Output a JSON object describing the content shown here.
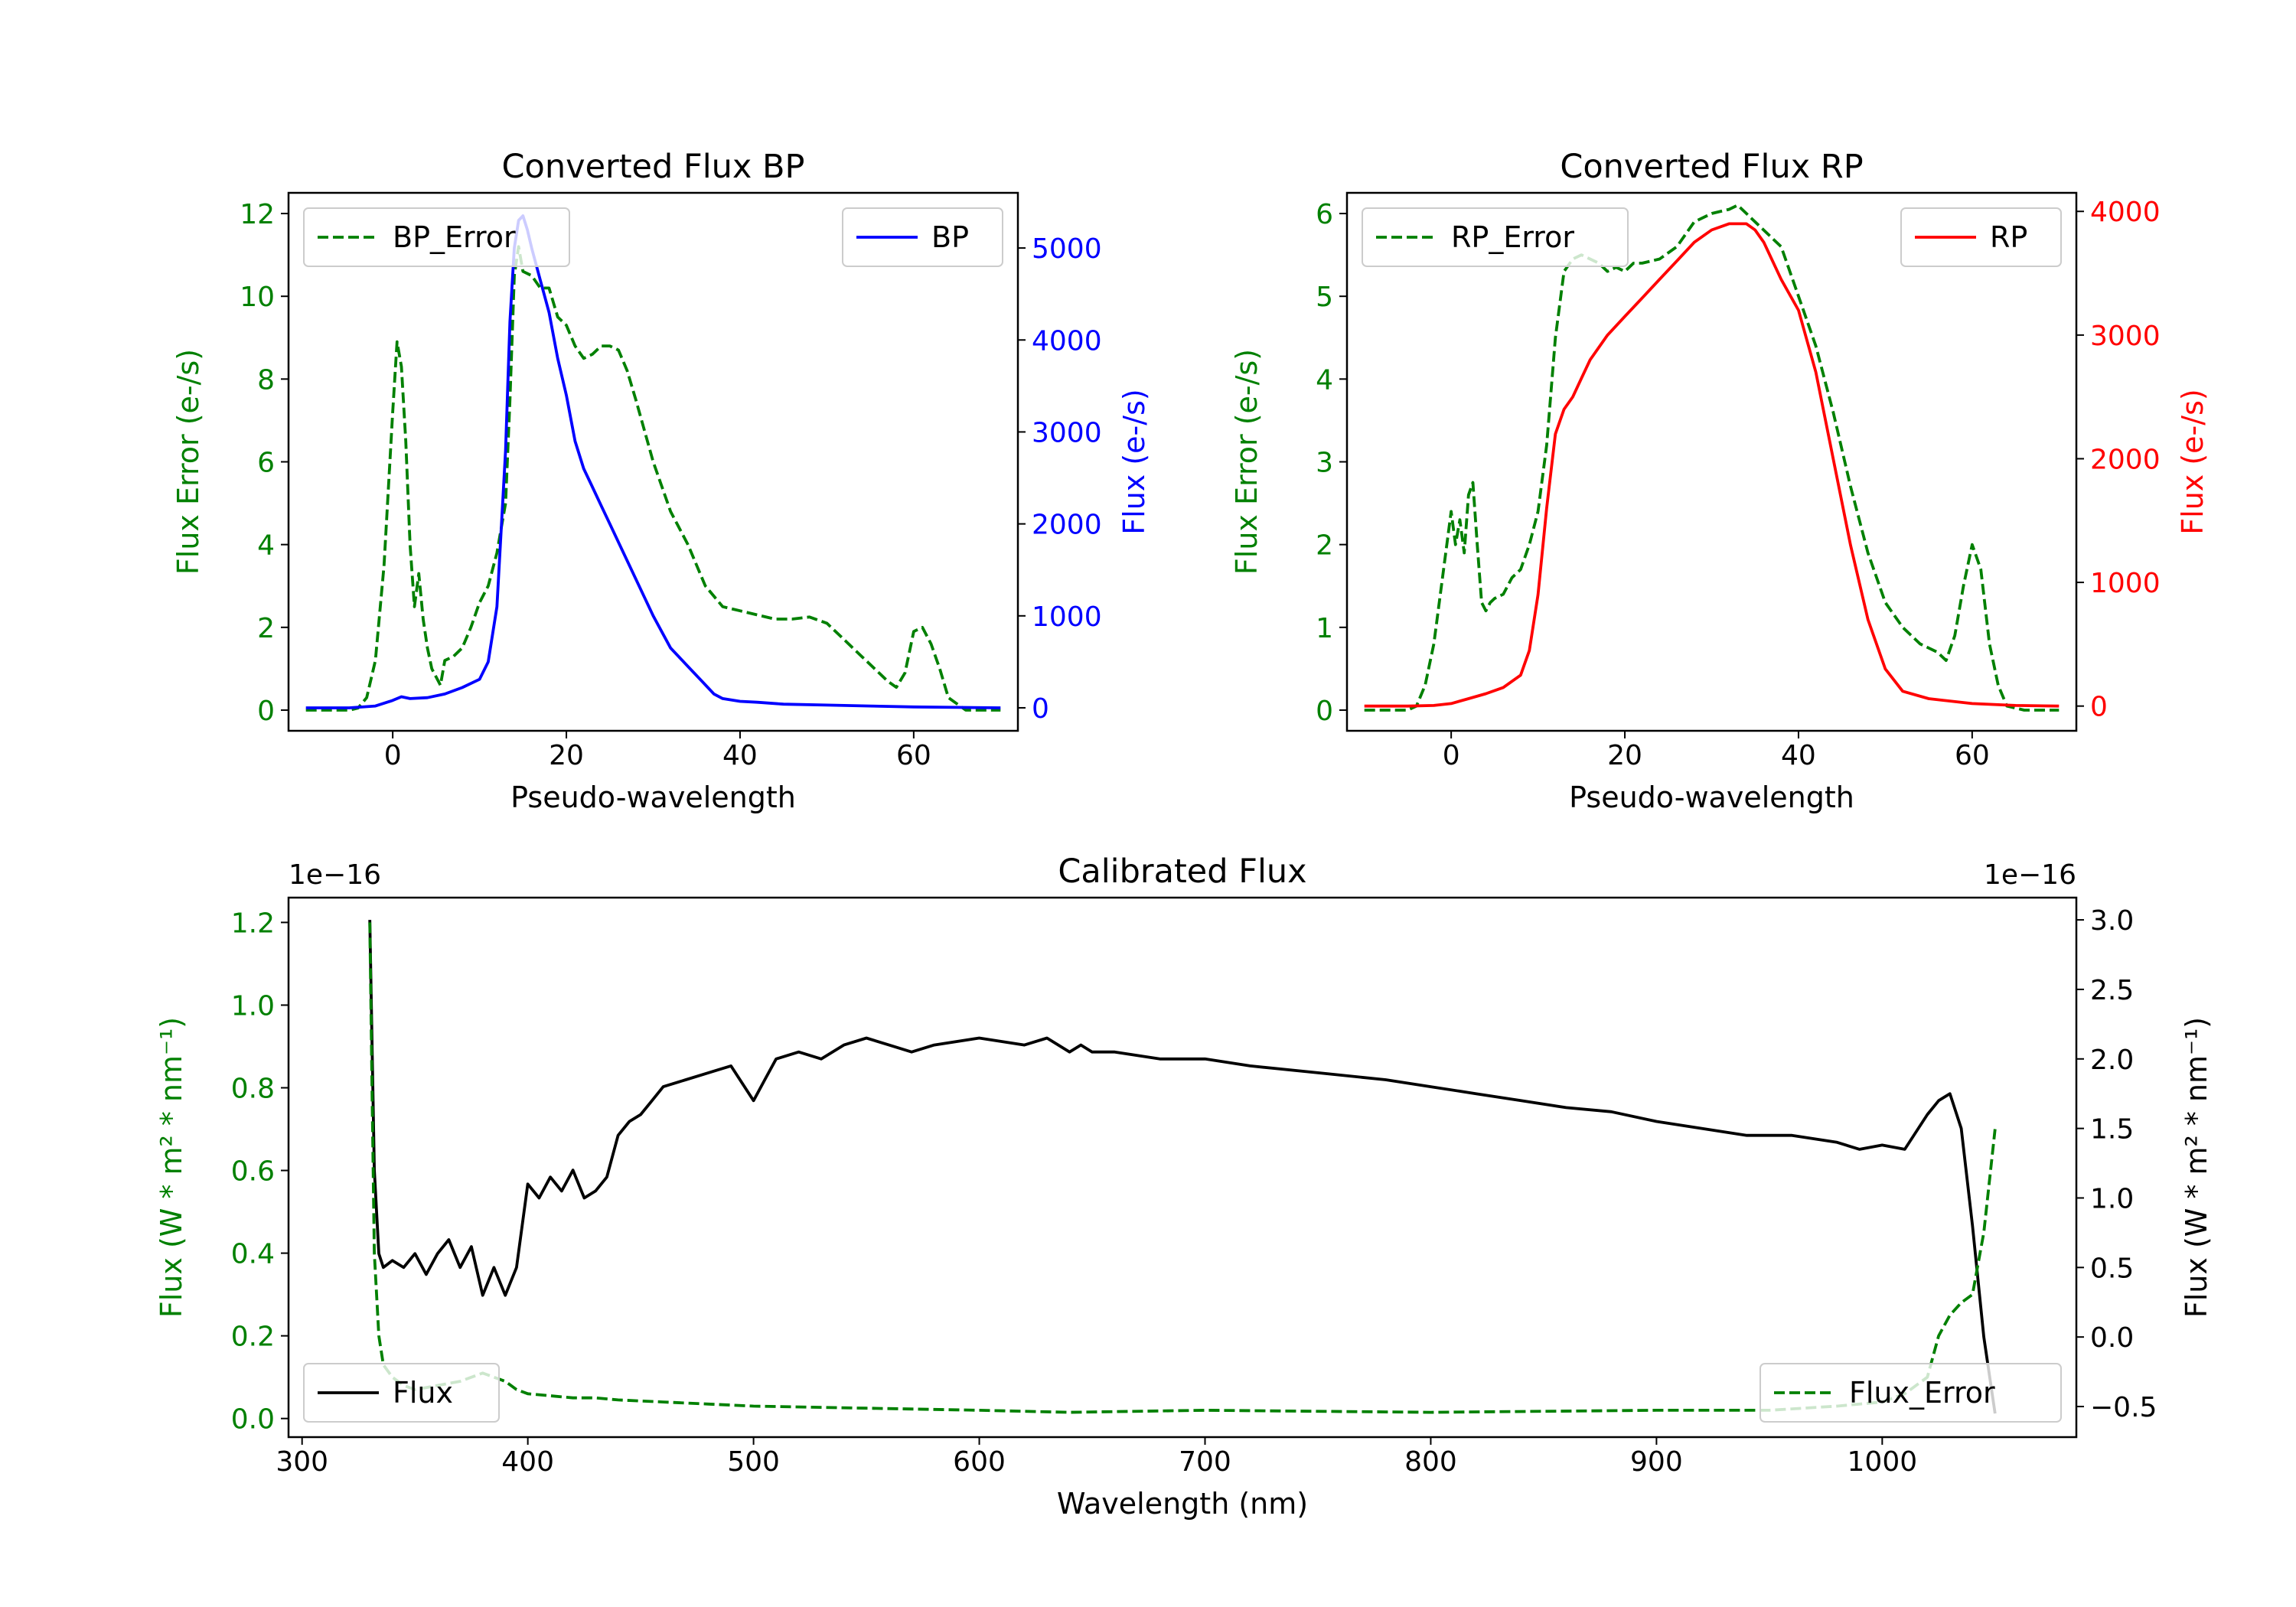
{
  "chart_data": [
    {
      "type": "line",
      "title": "Converted Flux BP",
      "xlabel": "Pseudo-wavelength",
      "ylabel_left": "Flux Error (e-/s)",
      "ylabel_right": "Flux (e-/s)",
      "xlim": [
        -12,
        72
      ],
      "ylim_left": [
        -0.5,
        12.5
      ],
      "ylim_right": [
        -250,
        5600
      ],
      "xticks": [
        0,
        20,
        40,
        60
      ],
      "yticks_left": [
        0,
        2,
        4,
        6,
        8,
        10,
        12
      ],
      "yticks_right": [
        0,
        1000,
        2000,
        3000,
        4000,
        5000
      ],
      "colors": {
        "left_axis": "#008000",
        "right_axis": "#0000ff"
      },
      "legend_left": {
        "label": "BP_Error",
        "placement": "top-left"
      },
      "legend_right": {
        "label": "BP",
        "placement": "top-right"
      },
      "series": [
        {
          "name": "BP_Error",
          "axis": "left",
          "color": "#008000",
          "style": "dashed",
          "x": [
            -10,
            -5,
            -4,
            -3,
            -2,
            -1,
            0,
            0.5,
            1,
            1.5,
            2,
            2.5,
            3,
            3.5,
            4,
            4.5,
            5,
            5.5,
            6,
            7,
            8,
            9,
            10,
            11,
            12,
            13,
            13.5,
            14,
            14.5,
            15,
            16,
            17,
            18,
            19,
            20,
            21,
            22,
            23,
            24,
            25,
            26,
            27,
            28,
            30,
            32,
            34,
            36,
            38,
            40,
            42,
            44,
            46,
            48,
            50,
            52,
            54,
            56,
            57,
            58,
            59,
            60,
            61,
            62,
            63,
            64,
            66,
            68,
            70
          ],
          "y": [
            0,
            0,
            0.05,
            0.3,
            1.2,
            3.5,
            7.2,
            8.9,
            8.3,
            6.5,
            4,
            2.5,
            3.3,
            2.2,
            1.5,
            1.0,
            0.8,
            0.6,
            1.2,
            1.3,
            1.5,
            2.0,
            2.6,
            3.0,
            3.8,
            5.0,
            7.5,
            10.5,
            11.2,
            10.6,
            10.5,
            10.2,
            10.2,
            9.5,
            9.3,
            8.8,
            8.5,
            8.6,
            8.8,
            8.8,
            8.7,
            8.2,
            7.5,
            6,
            4.8,
            4,
            3,
            2.5,
            2.4,
            2.3,
            2.2,
            2.2,
            2.25,
            2.1,
            1.7,
            1.3,
            0.9,
            0.7,
            0.55,
            0.9,
            1.9,
            2.0,
            1.6,
            1.0,
            0.3,
            0,
            0,
            0
          ]
        },
        {
          "name": "BP",
          "axis": "right",
          "color": "#0000ff",
          "style": "solid",
          "x": [
            -10,
            -5,
            -2,
            0,
            1,
            2,
            4,
            6,
            8,
            10,
            11,
            12,
            13,
            13.5,
            14,
            14.5,
            15,
            15.5,
            16,
            17,
            18,
            19,
            20,
            21,
            22,
            23,
            24,
            25,
            26,
            28,
            30,
            32,
            34,
            36,
            37,
            38,
            40,
            42,
            45,
            50,
            55,
            60,
            65,
            70
          ],
          "y": [
            0,
            0,
            20,
            80,
            120,
            100,
            110,
            150,
            220,
            310,
            500,
            1100,
            2800,
            4200,
            5000,
            5300,
            5350,
            5200,
            5000,
            4650,
            4300,
            3800,
            3400,
            2900,
            2600,
            2400,
            2200,
            2000,
            1800,
            1400,
            1000,
            650,
            450,
            250,
            150,
            100,
            70,
            60,
            40,
            30,
            20,
            10,
            5,
            0
          ]
        }
      ]
    },
    {
      "type": "line",
      "title": "Converted Flux RP",
      "xlabel": "Pseudo-wavelength",
      "ylabel_left": "Flux Error (e-/s)",
      "ylabel_right": "Flux (e-/s)",
      "xlim": [
        -12,
        72
      ],
      "ylim_left": [
        -0.25,
        6.25
      ],
      "ylim_right": [
        -200,
        4150
      ],
      "xticks": [
        0,
        20,
        40,
        60
      ],
      "yticks_left": [
        0,
        1,
        2,
        3,
        4,
        5,
        6
      ],
      "yticks_right": [
        0,
        1000,
        2000,
        3000,
        4000
      ],
      "colors": {
        "left_axis": "#008000",
        "right_axis": "#ff0000"
      },
      "legend_left": {
        "label": "RP_Error",
        "placement": "top-left"
      },
      "legend_right": {
        "label": "RP",
        "placement": "top-right"
      },
      "series": [
        {
          "name": "RP_Error",
          "axis": "left",
          "color": "#008000",
          "style": "dashed",
          "x": [
            -10,
            -5,
            -4,
            -3,
            -2,
            -1,
            0,
            0.5,
            1,
            1.5,
            2,
            2.5,
            3,
            3.5,
            4,
            4.5,
            5,
            6,
            7,
            8,
            9,
            10,
            11,
            12,
            13,
            14,
            15,
            16,
            17,
            18,
            19,
            20,
            21,
            22,
            24,
            26,
            28,
            30,
            32,
            33,
            34,
            35,
            36,
            37,
            38,
            40,
            42,
            44,
            46,
            48,
            50,
            52,
            54,
            56,
            57,
            58,
            59,
            60,
            61,
            62,
            63,
            64,
            66,
            70
          ],
          "y": [
            0,
            0,
            0.05,
            0.3,
            0.8,
            1.6,
            2.4,
            2.0,
            2.3,
            1.9,
            2.6,
            2.75,
            2.0,
            1.3,
            1.2,
            1.3,
            1.35,
            1.4,
            1.6,
            1.7,
            2.0,
            2.4,
            3.2,
            4.5,
            5.3,
            5.45,
            5.5,
            5.45,
            5.4,
            5.3,
            5.35,
            5.3,
            5.4,
            5.4,
            5.45,
            5.6,
            5.9,
            6.0,
            6.05,
            6.1,
            6.0,
            5.9,
            5.8,
            5.7,
            5.6,
            5.0,
            4.4,
            3.6,
            2.7,
            1.9,
            1.3,
            1.0,
            0.8,
            0.7,
            0.6,
            0.9,
            1.5,
            2.0,
            1.7,
            0.8,
            0.3,
            0.05,
            0,
            0
          ]
        },
        {
          "name": "RP",
          "axis": "right",
          "color": "#ff0000",
          "style": "solid",
          "x": [
            -10,
            -5,
            -2,
            0,
            2,
            4,
            6,
            8,
            9,
            10,
            11,
            12,
            13,
            14,
            15,
            16,
            18,
            20,
            22,
            24,
            26,
            28,
            30,
            32,
            33,
            34,
            35,
            36,
            38,
            40,
            42,
            44,
            46,
            48,
            50,
            52,
            55,
            60,
            65,
            70
          ],
          "y": [
            0,
            0,
            5,
            20,
            60,
            100,
            150,
            250,
            450,
            900,
            1600,
            2200,
            2400,
            2500,
            2650,
            2800,
            3000,
            3150,
            3300,
            3450,
            3600,
            3750,
            3850,
            3900,
            3900,
            3900,
            3850,
            3750,
            3450,
            3200,
            2700,
            2000,
            1300,
            700,
            300,
            120,
            60,
            20,
            5,
            0
          ]
        }
      ]
    },
    {
      "type": "line",
      "title": "Calibrated Flux",
      "xlabel": "Wavelength (nm)",
      "ylabel_left": "Flux (W * m² * nm⁻¹)",
      "ylabel_right": "Flux (W * m² * nm⁻¹)",
      "offset_left": "1e−16",
      "offset_right": "1e−16",
      "xlim": [
        294,
        1086
      ],
      "ylim_left": [
        -0.045,
        1.26
      ],
      "ylim_right": [
        -0.72,
        3.16
      ],
      "xticks": [
        300,
        400,
        500,
        600,
        700,
        800,
        900,
        1000
      ],
      "yticks_left": [
        0.0,
        0.2,
        0.4,
        0.6,
        0.8,
        1.0,
        1.2
      ],
      "yticks_right": [
        -0.5,
        0.0,
        0.5,
        1.0,
        1.5,
        2.0,
        2.5,
        3.0
      ],
      "colors": {
        "left_axis": "#008000",
        "right_axis": "#000000"
      },
      "legend_left": {
        "label": "Flux",
        "placement": "bottom-left"
      },
      "legend_right": {
        "label": "Flux_Error",
        "placement": "bottom-right"
      },
      "series": [
        {
          "name": "Flux",
          "axis": "right",
          "color": "#000000",
          "style": "solid",
          "x": [
            330,
            332,
            334,
            336,
            340,
            345,
            350,
            355,
            360,
            365,
            370,
            375,
            380,
            385,
            390,
            395,
            400,
            405,
            410,
            415,
            420,
            425,
            430,
            435,
            440,
            445,
            450,
            455,
            460,
            470,
            480,
            490,
            500,
            505,
            510,
            520,
            530,
            540,
            550,
            560,
            570,
            580,
            600,
            620,
            630,
            640,
            645,
            650,
            660,
            680,
            700,
            720,
            750,
            780,
            800,
            820,
            840,
            860,
            880,
            900,
            920,
            940,
            960,
            980,
            990,
            1000,
            1010,
            1020,
            1025,
            1030,
            1035,
            1040,
            1045,
            1050
          ],
          "y": [
            3.0,
            1.2,
            0.6,
            0.5,
            0.55,
            0.5,
            0.6,
            0.45,
            0.6,
            0.7,
            0.5,
            0.65,
            0.3,
            0.5,
            0.3,
            0.5,
            1.1,
            1.0,
            1.15,
            1.05,
            1.2,
            1.0,
            1.05,
            1.15,
            1.45,
            1.55,
            1.6,
            1.7,
            1.8,
            1.85,
            1.9,
            1.95,
            1.7,
            1.85,
            2.0,
            2.05,
            2.0,
            2.1,
            2.15,
            2.1,
            2.05,
            2.1,
            2.15,
            2.1,
            2.15,
            2.05,
            2.1,
            2.05,
            2.05,
            2.0,
            2.0,
            1.95,
            1.9,
            1.85,
            1.8,
            1.75,
            1.7,
            1.65,
            1.62,
            1.55,
            1.5,
            1.45,
            1.45,
            1.4,
            1.35,
            1.38,
            1.35,
            1.6,
            1.7,
            1.75,
            1.5,
            0.8,
            0.0,
            -0.55
          ]
        },
        {
          "name": "Flux_Error",
          "axis": "left",
          "color": "#008000",
          "style": "dashed",
          "x": [
            330,
            331,
            332,
            334,
            336,
            340,
            345,
            350,
            360,
            370,
            380,
            385,
            390,
            395,
            400,
            410,
            420,
            430,
            440,
            460,
            480,
            500,
            550,
            600,
            640,
            700,
            800,
            900,
            950,
            980,
            1000,
            1010,
            1020,
            1025,
            1030,
            1035,
            1040,
            1045,
            1050
          ],
          "y": [
            1.2,
            0.8,
            0.4,
            0.2,
            0.13,
            0.1,
            0.08,
            0.07,
            0.08,
            0.09,
            0.11,
            0.1,
            0.09,
            0.07,
            0.06,
            0.055,
            0.05,
            0.05,
            0.045,
            0.04,
            0.035,
            0.03,
            0.025,
            0.02,
            0.015,
            0.02,
            0.015,
            0.02,
            0.02,
            0.03,
            0.04,
            0.06,
            0.1,
            0.2,
            0.25,
            0.28,
            0.3,
            0.45,
            0.7
          ]
        }
      ]
    }
  ]
}
